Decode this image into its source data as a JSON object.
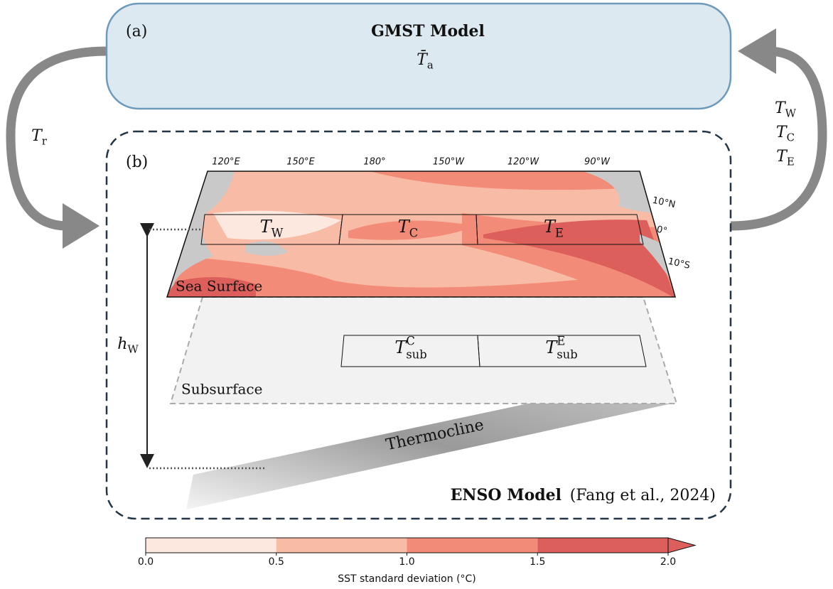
{
  "panel_a": {
    "label": "(a)",
    "title": "GMST Model",
    "variable": {
      "base": "T̄",
      "sub": "a"
    }
  },
  "feedback_left": {
    "base": "T",
    "sub": "r"
  },
  "feedback_right": [
    {
      "base": "T",
      "sub": "W"
    },
    {
      "base": "T",
      "sub": "C"
    },
    {
      "base": "T",
      "sub": "E"
    }
  ],
  "panel_b": {
    "label": "(b)",
    "title": "ENSO Model",
    "citation": "(Fang et al., 2024)",
    "map": {
      "layer": "Sea Surface",
      "lon_labels": [
        "120°E",
        "150°E",
        "180°",
        "150°W",
        "120°W",
        "90°W"
      ],
      "lat_labels": [
        "10°N",
        "0°",
        "10°S"
      ],
      "regions": [
        {
          "base": "T",
          "sub": "W"
        },
        {
          "base": "T",
          "sub": "C"
        },
        {
          "base": "T",
          "sub": "E"
        }
      ]
    },
    "subsurface": {
      "layer": "Subsurface",
      "regions": [
        {
          "base": "T",
          "sub": "sub",
          "sup": "C"
        },
        {
          "base": "T",
          "sub": "sub",
          "sup": "E"
        }
      ]
    },
    "thermocline": "Thermocline",
    "depth": {
      "base": "h",
      "sub": "W"
    }
  },
  "colorbar": {
    "label": "SST standard deviation (°C)",
    "ticks": [
      "0.0",
      "0.5",
      "1.0",
      "1.5",
      "2.0"
    ],
    "colors": [
      "#fde8df",
      "#f8bba6",
      "#f28c78",
      "#dc5f5b"
    ]
  }
}
